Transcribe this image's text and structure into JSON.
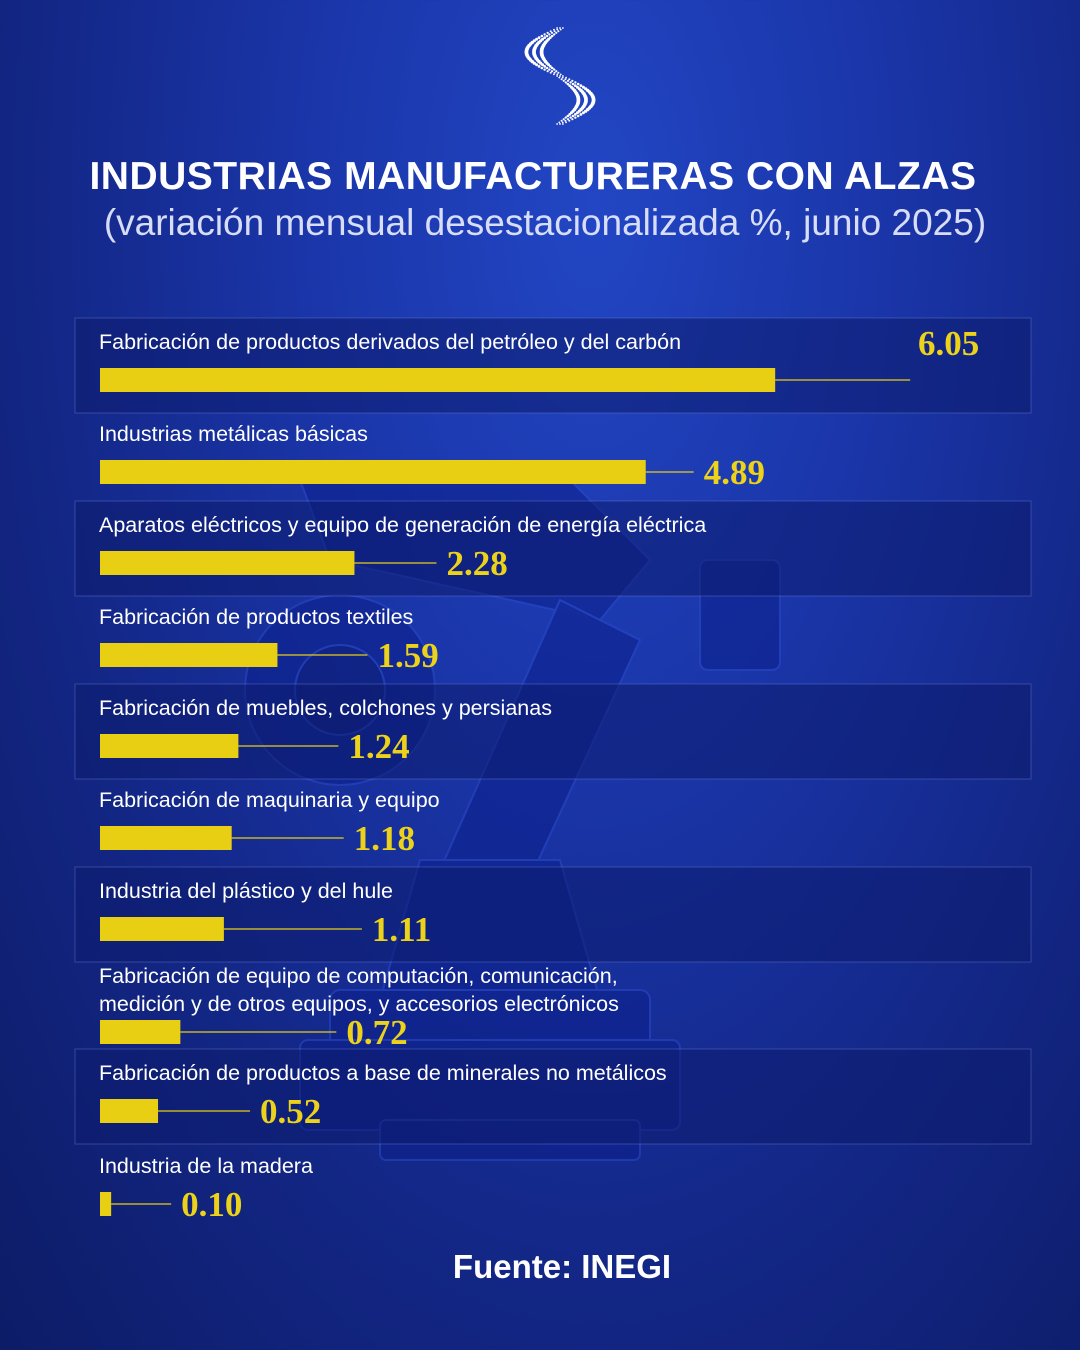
{
  "header": {
    "title": "INDUSTRIAS MANUFACTURERAS CON ALZAS",
    "subtitle": "(variación mensual desestacionalizada %, junio 2025)"
  },
  "footer": {
    "source": "Fuente: INEGI"
  },
  "colors": {
    "bar": "#e8cf14",
    "background": "#1a35a8",
    "text": "#ffffff"
  },
  "logo_icon": "dotted-s-logo-icon",
  "chart_data": {
    "type": "bar",
    "orientation": "horizontal",
    "title": "INDUSTRIAS MANUFACTURERAS CON ALZAS",
    "subtitle": "(variación mensual desestacionalizada %, junio 2025)",
    "xlabel": "",
    "ylabel": "",
    "grid": false,
    "categories": [
      [
        "Fabricación de productos derivados del petróleo y del carbón"
      ],
      [
        "Industrias metálicas básicas"
      ],
      [
        "Aparatos eléctricos y equipo de generación de energía  eléctrica"
      ],
      [
        "Fabricación de productos textiles"
      ],
      [
        "Fabricación de muebles, colchones y persianas"
      ],
      [
        "Fabricación de maquinaria y equipo"
      ],
      [
        "Industria del plástico y del hule"
      ],
      [
        "Fabricación de equipo de computación, comunicación,",
        "medición y de otros equipos, y accesorios electrónicos"
      ],
      [
        "Fabricación de productos a base de minerales no metálicos"
      ],
      [
        "Industria de la madera"
      ]
    ],
    "values": [
      6.05,
      4.89,
      2.28,
      1.59,
      1.24,
      1.18,
      1.11,
      0.72,
      0.52,
      0.1
    ],
    "value_labels": [
      "6.05",
      "4.89",
      "2.28",
      "1.59",
      "1.24",
      "1.18",
      "1.11",
      "0.72",
      "0.52",
      "0.10"
    ],
    "highlighted_rows": [
      0,
      2,
      4,
      6,
      8
    ]
  }
}
